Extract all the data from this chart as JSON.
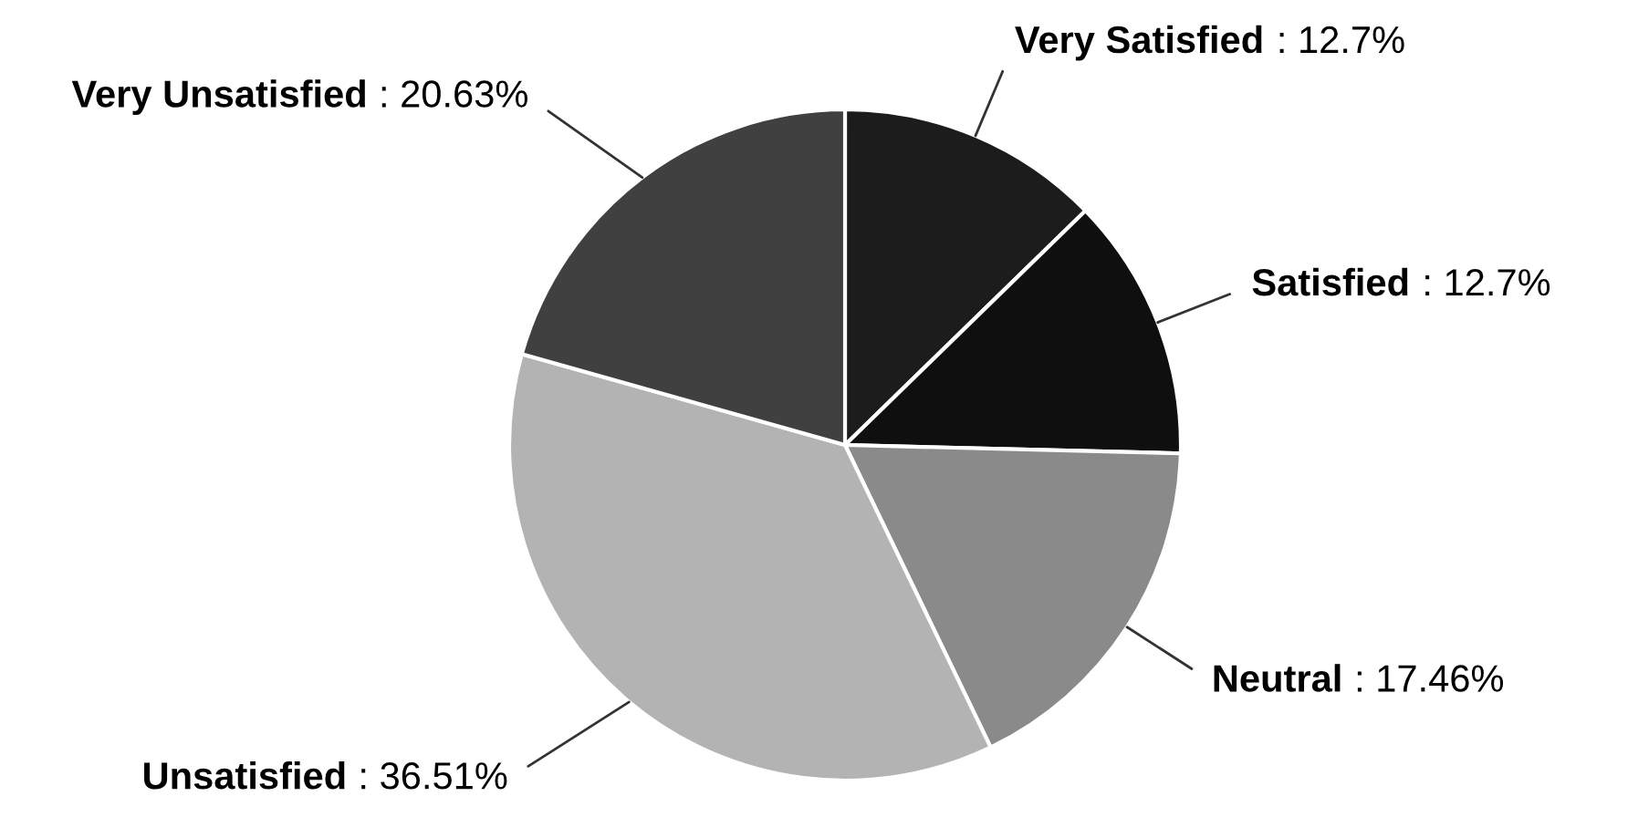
{
  "chart_data": {
    "type": "pie",
    "categories": [
      "Very Satisfied",
      "Satisfied",
      "Neutral",
      "Unsatisfied",
      "Very Unsatisfied"
    ],
    "values": [
      12.7,
      12.7,
      17.46,
      36.51,
      20.63
    ],
    "value_labels": [
      ": 12.7%",
      ": 12.7%",
      ": 17.46%",
      ": 36.51%",
      ": 20.63%"
    ],
    "colors": [
      "#1c1c1c",
      "#0f0f0f",
      "#8a8a8a",
      "#b3b3b3",
      "#404040"
    ]
  }
}
